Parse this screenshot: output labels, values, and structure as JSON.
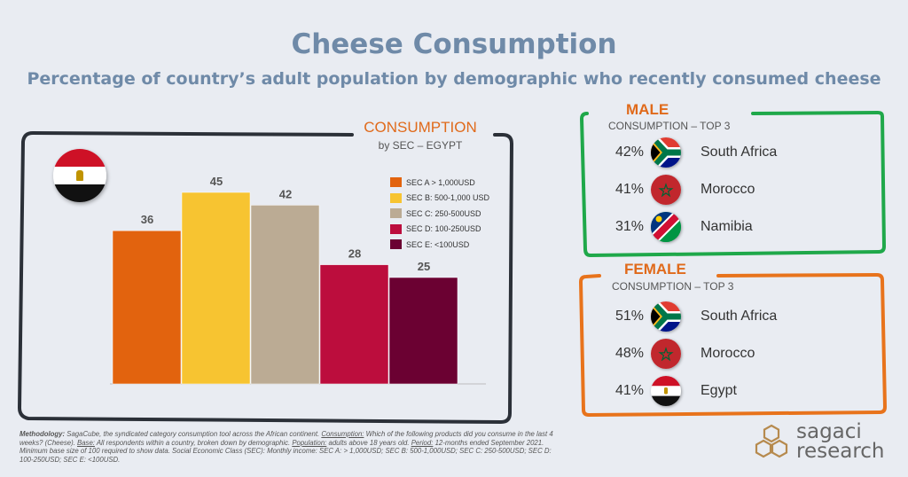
{
  "title": "Cheese Consumption",
  "subtitle": "Percentage of country’s adult population by demographic who recently consumed cheese",
  "chart_data": {
    "type": "bar",
    "title": "CONSUMPTION",
    "subtitle": "by SEC – EGYPT",
    "categories": [
      "SEC A > 1,000USD",
      "SEC B: 500-1,000 USD",
      "SEC C: 250-500USD",
      "SEC D: 100-250USD",
      "SEC E: <100USD"
    ],
    "values": [
      36,
      45,
      42,
      28,
      25
    ],
    "colors": [
      "#e2630e",
      "#f7c431",
      "#bbab94",
      "#bc0d3d",
      "#6b0132"
    ],
    "ylim": [
      0,
      60
    ],
    "grid": false,
    "legend_position": "right",
    "flag": "egypt-flag"
  },
  "male": {
    "heading": "MALE",
    "sub": "CONSUMPTION – TOP 3",
    "rows": [
      {
        "pct": "42%",
        "country": "South Africa",
        "flag": "south-africa-flag"
      },
      {
        "pct": "41%",
        "country": "Morocco",
        "flag": "morocco-flag"
      },
      {
        "pct": "31%",
        "country": "Namibia",
        "flag": "namibia-flag"
      }
    ]
  },
  "female": {
    "heading": "FEMALE",
    "sub": "CONSUMPTION – TOP 3",
    "rows": [
      {
        "pct": "51%",
        "country": "South Africa",
        "flag": "south-africa-flag"
      },
      {
        "pct": "48%",
        "country": "Morocco",
        "flag": "morocco-flag"
      },
      {
        "pct": "41%",
        "country": "Egypt",
        "flag": "egypt-flag"
      }
    ]
  },
  "methodology": {
    "label_methodology": "Methodology:",
    "text_methodology": " SagaCube, the syndicated category consumption tool across the African continent. ",
    "label_consumption": "Consumption:",
    "text_consumption": " Which of the following products did you consume in the last 4 weeks? (Cheese). ",
    "label_base": "Base:",
    "text_base": " All respondents within a country, broken down by demographic. ",
    "label_population": "Population:",
    "text_population": " adults above 18 years old. ",
    "label_period": "Period:",
    "text_period": " 12-months ended September 2021. Minimum base size of 100 required to show data. Social Economic Class (SEC): Monthly income: SEC A: > 1,000USD; SEC B: 500-1,000USD; SEC C: 250-500USD; SEC D: 100-250USD; SEC E: <100USD."
  },
  "logo": {
    "line1": "sagaci",
    "line2": "research"
  },
  "colors": {
    "male_border": "#1fa84a",
    "female_border": "#e8731c",
    "chart_border": "#2b3038",
    "title": "#6f8aa8"
  }
}
